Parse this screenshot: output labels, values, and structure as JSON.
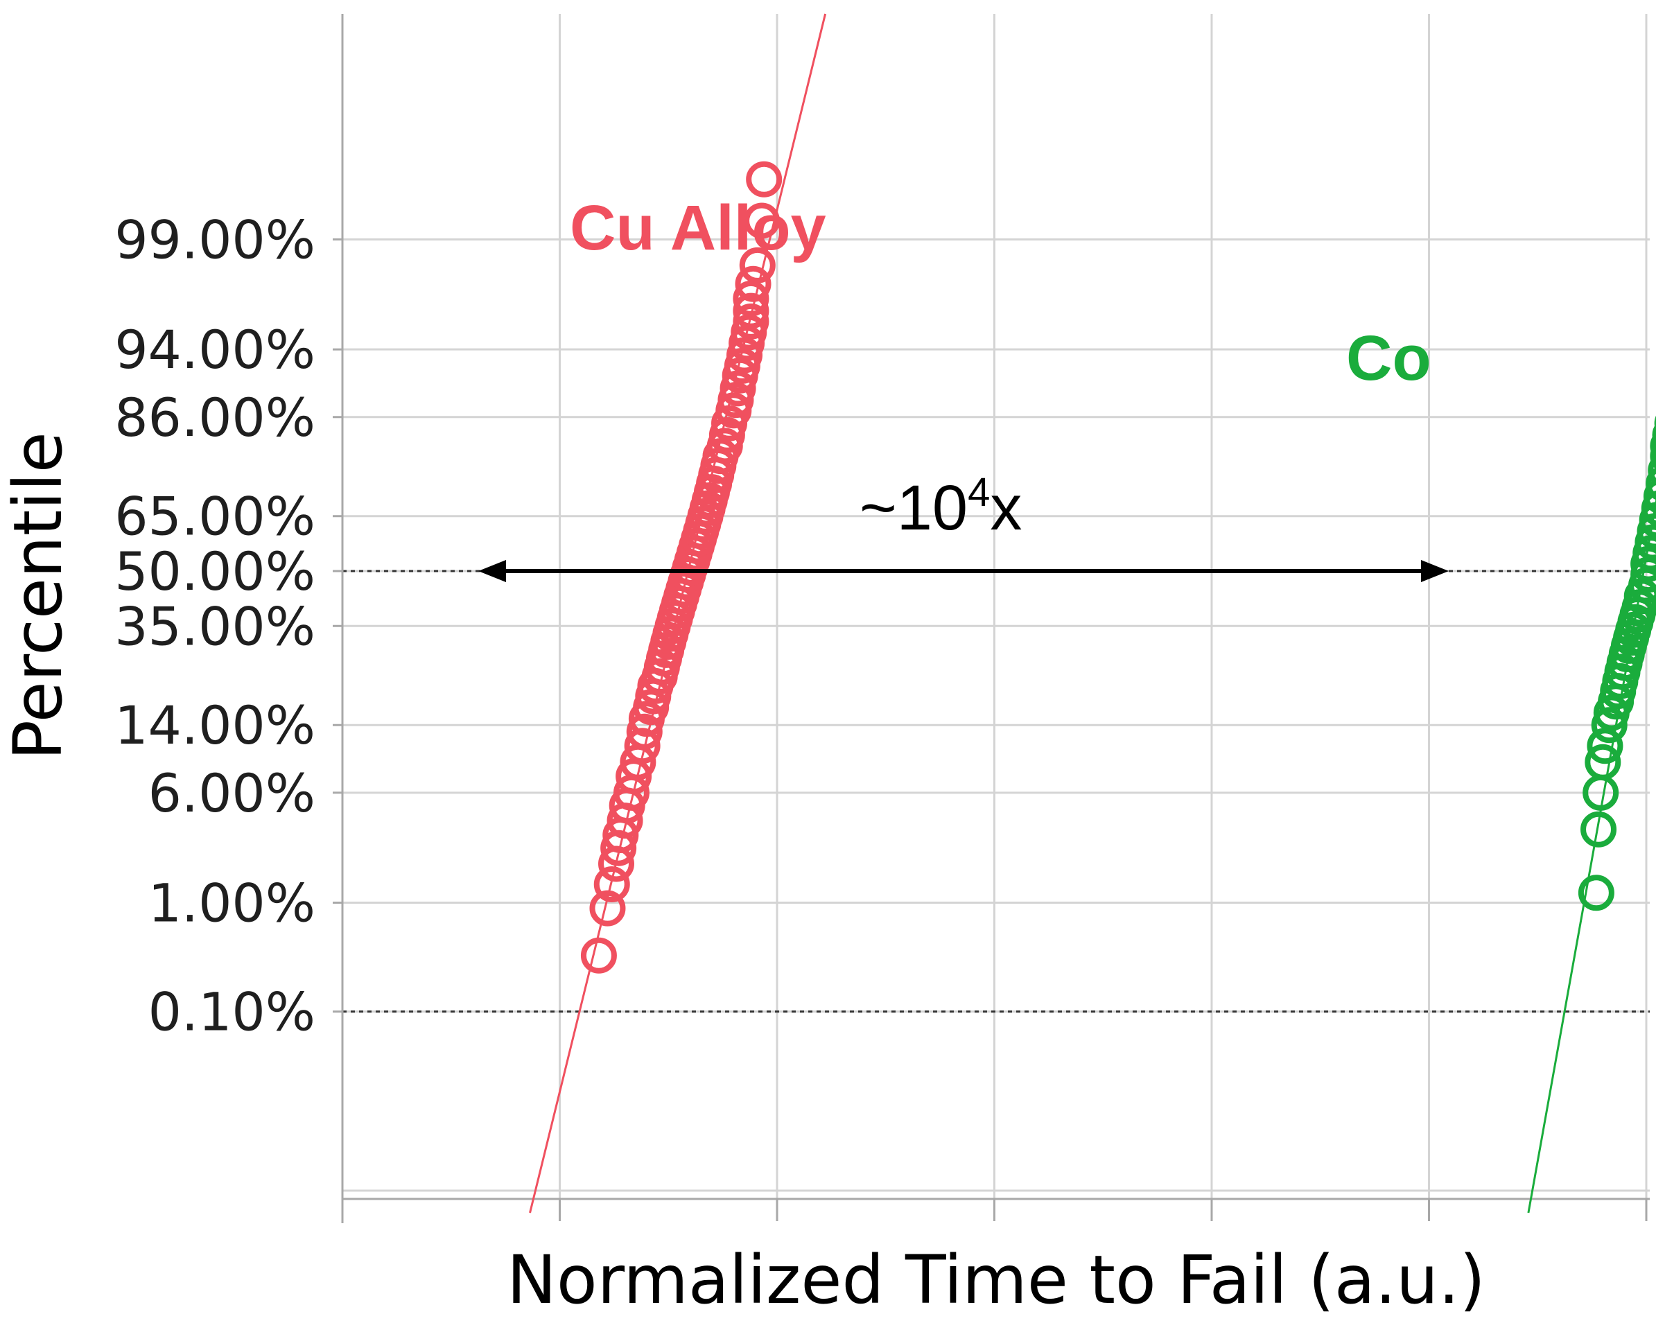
{
  "chart_data": {
    "type": "scatter",
    "title": "",
    "xlabel": "Normalized Time to Fail (a.u.)",
    "ylabel": "Percentile",
    "x_scale": "log",
    "x_tick_labels_shown": false,
    "y_scale": "normal-probability",
    "ylim": [
      0.06,
      99.8
    ],
    "y_ticks": [
      {
        "value": 0.1,
        "label": "0.10%"
      },
      {
        "value": 1,
        "label": "1.00%"
      },
      {
        "value": 6,
        "label": "6.00%"
      },
      {
        "value": 14,
        "label": "14.00%"
      },
      {
        "value": 35,
        "label": "35.00%"
      },
      {
        "value": 50,
        "label": "50.00%"
      },
      {
        "value": 65,
        "label": "65.00%"
      },
      {
        "value": 86,
        "label": "86.00%"
      },
      {
        "value": 94,
        "label": "94.00%"
      },
      {
        "value": 99,
        "label": "99.00%"
      }
    ],
    "reference_lines": [
      {
        "percentile": 50,
        "style": "dotted"
      },
      {
        "percentile": 0.1,
        "style": "dotted"
      }
    ],
    "grid": true,
    "series": [
      {
        "name": "Cu Alloy",
        "color": "#f0505f",
        "marker": "open-circle",
        "fit_line": true,
        "x": [
          1.18,
          1.22,
          1.24,
          1.26,
          1.27,
          1.28,
          1.3,
          1.31,
          1.33,
          1.34,
          1.36,
          1.38,
          1.39,
          1.4,
          1.42,
          1.43,
          1.44,
          1.46,
          1.47,
          1.48,
          1.49,
          1.5,
          1.51,
          1.52,
          1.53,
          1.54,
          1.55,
          1.56,
          1.57,
          1.58,
          1.59,
          1.6,
          1.61,
          1.62,
          1.63,
          1.64,
          1.65,
          1.66,
          1.67,
          1.68,
          1.69,
          1.7,
          1.71,
          1.72,
          1.73,
          1.74,
          1.76,
          1.77,
          1.78,
          1.8,
          1.81,
          1.82,
          1.83,
          1.84,
          1.85,
          1.86,
          1.87,
          1.88,
          1.88,
          1.88,
          1.89,
          1.91,
          1.93,
          1.94
        ],
        "y": [
          0.35,
          0.9,
          1.4,
          2.0,
          2.6,
          3.2,
          4.0,
          5.0,
          6.0,
          7.5,
          9.0,
          11,
          13,
          15,
          17,
          19,
          21,
          23,
          25,
          27,
          29,
          31,
          33,
          35,
          37,
          39,
          41,
          43,
          45,
          47,
          49,
          51,
          53,
          55,
          57,
          59,
          61,
          63,
          65,
          67,
          69,
          71,
          73,
          75,
          77,
          79,
          81,
          83,
          85,
          87,
          88.5,
          90,
          91.5,
          92.5,
          93.5,
          94.5,
          95.3,
          96.0,
          96.6,
          97.2,
          97.8,
          98.4,
          99.3,
          99.7
        ]
      },
      {
        "name": "Co",
        "color": "#1aac3c",
        "marker": "open-circle",
        "fit_line": true,
        "x": [
          5.77,
          5.78,
          5.79,
          5.8,
          5.81,
          5.83,
          5.84,
          5.86,
          5.87,
          5.88,
          5.89,
          5.9,
          5.91,
          5.92,
          5.93,
          5.94,
          5.95,
          5.96,
          5.97,
          5.98,
          6.0,
          6.01,
          6.01,
          6.02,
          6.03,
          6.04,
          6.05,
          6.06,
          6.07,
          6.08,
          6.09,
          6.1,
          6.1,
          6.11,
          6.12,
          6.13,
          6.13,
          6.14,
          6.15,
          6.16
        ],
        "y": [
          1.2,
          3.5,
          6,
          9,
          11,
          14,
          16,
          18,
          20,
          22,
          24,
          26,
          28,
          30,
          32,
          34,
          36,
          38,
          40,
          43,
          46,
          49,
          52,
          55,
          58,
          61,
          64,
          67,
          70,
          73,
          76,
          79,
          81,
          83,
          85,
          87,
          89,
          91,
          94,
          98.5
        ]
      }
    ],
    "annotations": [
      {
        "text": "~10",
        "superscript": "4",
        "suffix": "x",
        "type": "double-arrow",
        "at_percentile": 50
      }
    ]
  }
}
